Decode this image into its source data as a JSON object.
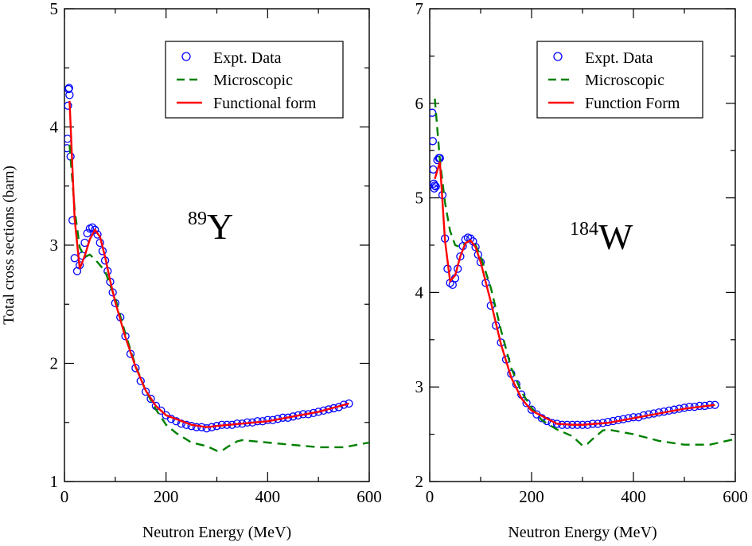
{
  "figure": {
    "ylabel": "Total cross sections (barn)"
  },
  "chart_data": [
    {
      "type": "line",
      "xlabel": "Neutron Energy (MeV)",
      "xlim": [
        0,
        600
      ],
      "ylim": [
        1,
        5
      ],
      "x_ticks": [
        0,
        200,
        400,
        600
      ],
      "y_ticks": [
        1,
        2,
        3,
        4,
        5
      ],
      "annotation": {
        "sup": "89",
        "main": "Y"
      },
      "legend": {
        "placement": "top-right",
        "entries": [
          "Expt. Data",
          "Microscopic",
          "Functional form"
        ]
      },
      "series": [
        {
          "name": "Expt. Data",
          "style": "circles",
          "color": "#0000ff",
          "x": [
            5,
            6,
            7,
            8,
            9,
            10,
            12,
            16,
            20,
            25,
            30,
            35,
            40,
            45,
            50,
            55,
            60,
            65,
            70,
            75,
            80,
            85,
            90,
            95,
            100,
            110,
            120,
            130,
            140,
            150,
            160,
            170,
            180,
            190,
            200,
            210,
            220,
            230,
            240,
            250,
            260,
            270,
            280,
            290,
            300,
            310,
            320,
            330,
            340,
            350,
            360,
            370,
            380,
            390,
            400,
            410,
            420,
            430,
            440,
            450,
            460,
            470,
            480,
            490,
            500,
            510,
            520,
            530,
            540,
            550,
            560
          ],
          "y": [
            3.82,
            3.9,
            4.18,
            4.32,
            4.33,
            4.27,
            3.75,
            3.21,
            2.89,
            2.78,
            2.83,
            2.91,
            3.02,
            3.1,
            3.14,
            3.15,
            3.13,
            3.09,
            3.02,
            2.95,
            2.87,
            2.78,
            2.69,
            2.6,
            2.51,
            2.39,
            2.23,
            2.08,
            1.96,
            1.85,
            1.76,
            1.7,
            1.64,
            1.6,
            1.56,
            1.53,
            1.51,
            1.49,
            1.48,
            1.47,
            1.46,
            1.46,
            1.45,
            1.46,
            1.47,
            1.48,
            1.48,
            1.48,
            1.49,
            1.49,
            1.5,
            1.5,
            1.51,
            1.51,
            1.52,
            1.52,
            1.53,
            1.54,
            1.54,
            1.55,
            1.56,
            1.57,
            1.57,
            1.58,
            1.59,
            1.6,
            1.61,
            1.62,
            1.63,
            1.65,
            1.66
          ]
        },
        {
          "name": "Microscopic",
          "style": "dashed",
          "color": "#008000",
          "x": [
            10,
            20,
            30,
            40,
            50,
            60,
            70,
            80,
            90,
            100,
            120,
            140,
            160,
            180,
            200,
            220,
            250,
            280,
            300,
            310,
            320,
            340,
            350,
            400,
            450,
            500,
            550,
            600
          ],
          "y": [
            3.85,
            3.3,
            2.98,
            2.9,
            2.92,
            2.88,
            2.83,
            2.78,
            2.66,
            2.55,
            2.25,
            1.98,
            1.77,
            1.61,
            1.48,
            1.41,
            1.33,
            1.3,
            1.26,
            1.26,
            1.29,
            1.34,
            1.35,
            1.33,
            1.31,
            1.29,
            1.29,
            1.33
          ]
        },
        {
          "name": "Functional form",
          "style": "solid",
          "color": "#ff0000",
          "x": [
            10,
            20,
            30,
            40,
            50,
            60,
            70,
            80,
            90,
            100,
            120,
            140,
            160,
            180,
            200,
            250,
            280,
            300,
            350,
            400,
            450,
            500,
            560
          ],
          "y": [
            4.22,
            3.22,
            2.8,
            2.91,
            3.05,
            3.13,
            3.07,
            2.9,
            2.7,
            2.52,
            2.22,
            1.97,
            1.77,
            1.64,
            1.56,
            1.48,
            1.46,
            1.47,
            1.49,
            1.51,
            1.55,
            1.59,
            1.66
          ]
        }
      ]
    },
    {
      "type": "line",
      "xlabel": "Neutron Energy (MeV)",
      "xlim": [
        0,
        600
      ],
      "ylim": [
        2,
        7
      ],
      "x_ticks": [
        0,
        200,
        400,
        600
      ],
      "y_ticks": [
        2,
        3,
        4,
        5,
        6,
        7
      ],
      "annotation": {
        "sup": "184",
        "main": "W"
      },
      "legend": {
        "placement": "top-right",
        "entries": [
          "Expt. Data",
          "Microscopic",
          "Function Form"
        ]
      },
      "series": [
        {
          "name": "Expt. Data",
          "style": "circles",
          "color": "#0000ff",
          "x": [
            5,
            6,
            7,
            8,
            9,
            10,
            12,
            15,
            18,
            20,
            25,
            30,
            35,
            40,
            45,
            50,
            55,
            60,
            65,
            70,
            75,
            80,
            85,
            90,
            95,
            100,
            110,
            120,
            130,
            140,
            150,
            160,
            170,
            180,
            190,
            200,
            210,
            220,
            230,
            240,
            250,
            260,
            270,
            280,
            290,
            300,
            310,
            320,
            330,
            340,
            350,
            360,
            370,
            380,
            390,
            400,
            410,
            420,
            430,
            440,
            450,
            460,
            470,
            480,
            490,
            500,
            510,
            520,
            530,
            540,
            550,
            560
          ],
          "y": [
            5.9,
            5.6,
            5.3,
            5.15,
            5.1,
            5.13,
            5.12,
            5.4,
            5.42,
            5.42,
            5.03,
            4.57,
            4.25,
            4.1,
            4.08,
            4.15,
            4.25,
            4.38,
            4.49,
            4.56,
            4.58,
            4.57,
            4.54,
            4.48,
            4.4,
            4.32,
            4.1,
            3.86,
            3.65,
            3.47,
            3.29,
            3.14,
            3.03,
            2.92,
            2.83,
            2.76,
            2.71,
            2.67,
            2.64,
            2.62,
            2.61,
            2.6,
            2.6,
            2.6,
            2.6,
            2.6,
            2.6,
            2.61,
            2.61,
            2.62,
            2.63,
            2.64,
            2.65,
            2.66,
            2.67,
            2.68,
            2.68,
            2.7,
            2.71,
            2.72,
            2.73,
            2.74,
            2.75,
            2.76,
            2.77,
            2.78,
            2.79,
            2.79,
            2.8,
            2.8,
            2.81,
            2.81
          ]
        },
        {
          "name": "Microscopic",
          "style": "dashed",
          "color": "#008000",
          "x": [
            10,
            20,
            30,
            40,
            50,
            60,
            70,
            80,
            90,
            100,
            120,
            140,
            160,
            180,
            200,
            220,
            250,
            280,
            300,
            310,
            320,
            340,
            350,
            400,
            450,
            500,
            550,
            600
          ],
          "y": [
            6.05,
            5.4,
            4.95,
            4.65,
            4.5,
            4.48,
            4.52,
            4.55,
            4.5,
            4.38,
            4.05,
            3.6,
            3.2,
            2.95,
            2.78,
            2.65,
            2.55,
            2.48,
            2.38,
            2.4,
            2.45,
            2.54,
            2.55,
            2.5,
            2.43,
            2.39,
            2.39,
            2.45
          ]
        },
        {
          "name": "Function Form",
          "style": "solid",
          "color": "#ff0000",
          "x": [
            10,
            20,
            30,
            40,
            50,
            60,
            70,
            80,
            90,
            100,
            120,
            140,
            160,
            180,
            200,
            250,
            280,
            300,
            350,
            400,
            450,
            500,
            560
          ],
          "y": [
            5.2,
            5.38,
            4.55,
            4.12,
            4.18,
            4.38,
            4.52,
            4.55,
            4.48,
            4.32,
            3.9,
            3.45,
            3.1,
            2.88,
            2.75,
            2.61,
            2.6,
            2.6,
            2.62,
            2.67,
            2.72,
            2.77,
            2.81
          ]
        }
      ]
    }
  ]
}
